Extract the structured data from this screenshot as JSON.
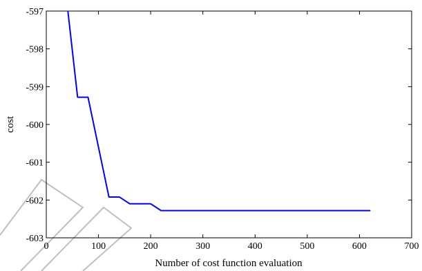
{
  "chart_data": {
    "type": "line",
    "title": "",
    "xlabel": "Number of cost function evaluation",
    "ylabel": "cost",
    "xlim": [
      0,
      700
    ],
    "ylim": [
      -603,
      -597
    ],
    "xticks": [
      0,
      100,
      200,
      300,
      400,
      500,
      600,
      700
    ],
    "yticks": [
      -603,
      -602,
      -601,
      -600,
      -599,
      -598,
      -597
    ],
    "grid": false,
    "legend": "none",
    "series": [
      {
        "color": "#0000ff",
        "x": [
          30,
          60,
          80,
          100,
          120,
          140,
          160,
          200,
          220,
          620
        ],
        "y": [
          -595.6,
          -599.28,
          -599.28,
          -600.6,
          -601.92,
          -601.92,
          -602.1,
          -602.1,
          -602.28,
          -602.28
        ]
      }
    ]
  }
}
